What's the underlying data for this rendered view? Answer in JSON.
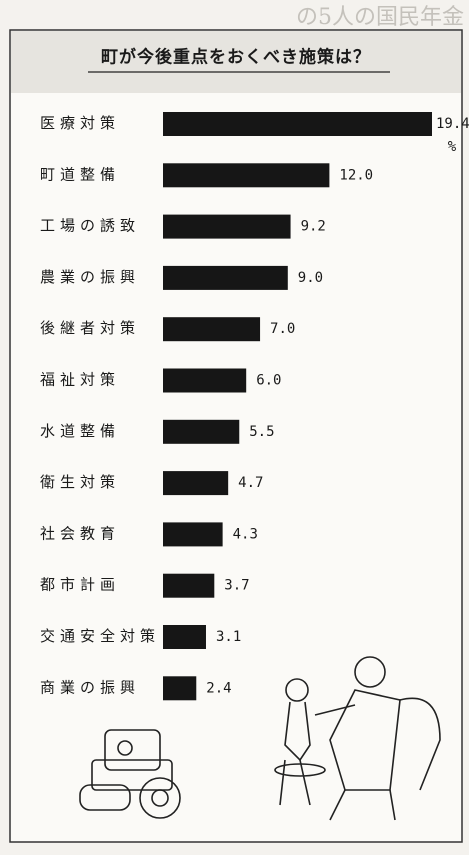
{
  "header_fragment": "の5人の国民年金",
  "chart_data": {
    "type": "bar",
    "orientation": "horizontal",
    "title": "町が今後重点をおくべき施策は？",
    "unit": "%",
    "categories": [
      "医療対策",
      "町道整備",
      "工場の誘致",
      "農業の振興",
      "後継者対策",
      "福祉対策",
      "水道整備",
      "衛生対策",
      "社会教育",
      "都市計画",
      "交通安全対策",
      "商業の振興"
    ],
    "values": [
      19.4,
      12.0,
      9.2,
      9.0,
      7.0,
      6.0,
      5.5,
      4.7,
      4.3,
      3.7,
      3.1,
      2.4
    ],
    "value_labels": [
      "19.4",
      "12.0",
      "9.2",
      "9.0",
      "7.0",
      "6.0",
      "5.5",
      "4.7",
      "4.3",
      "3.7",
      "3.1",
      "2.4"
    ],
    "color": "#161616"
  }
}
